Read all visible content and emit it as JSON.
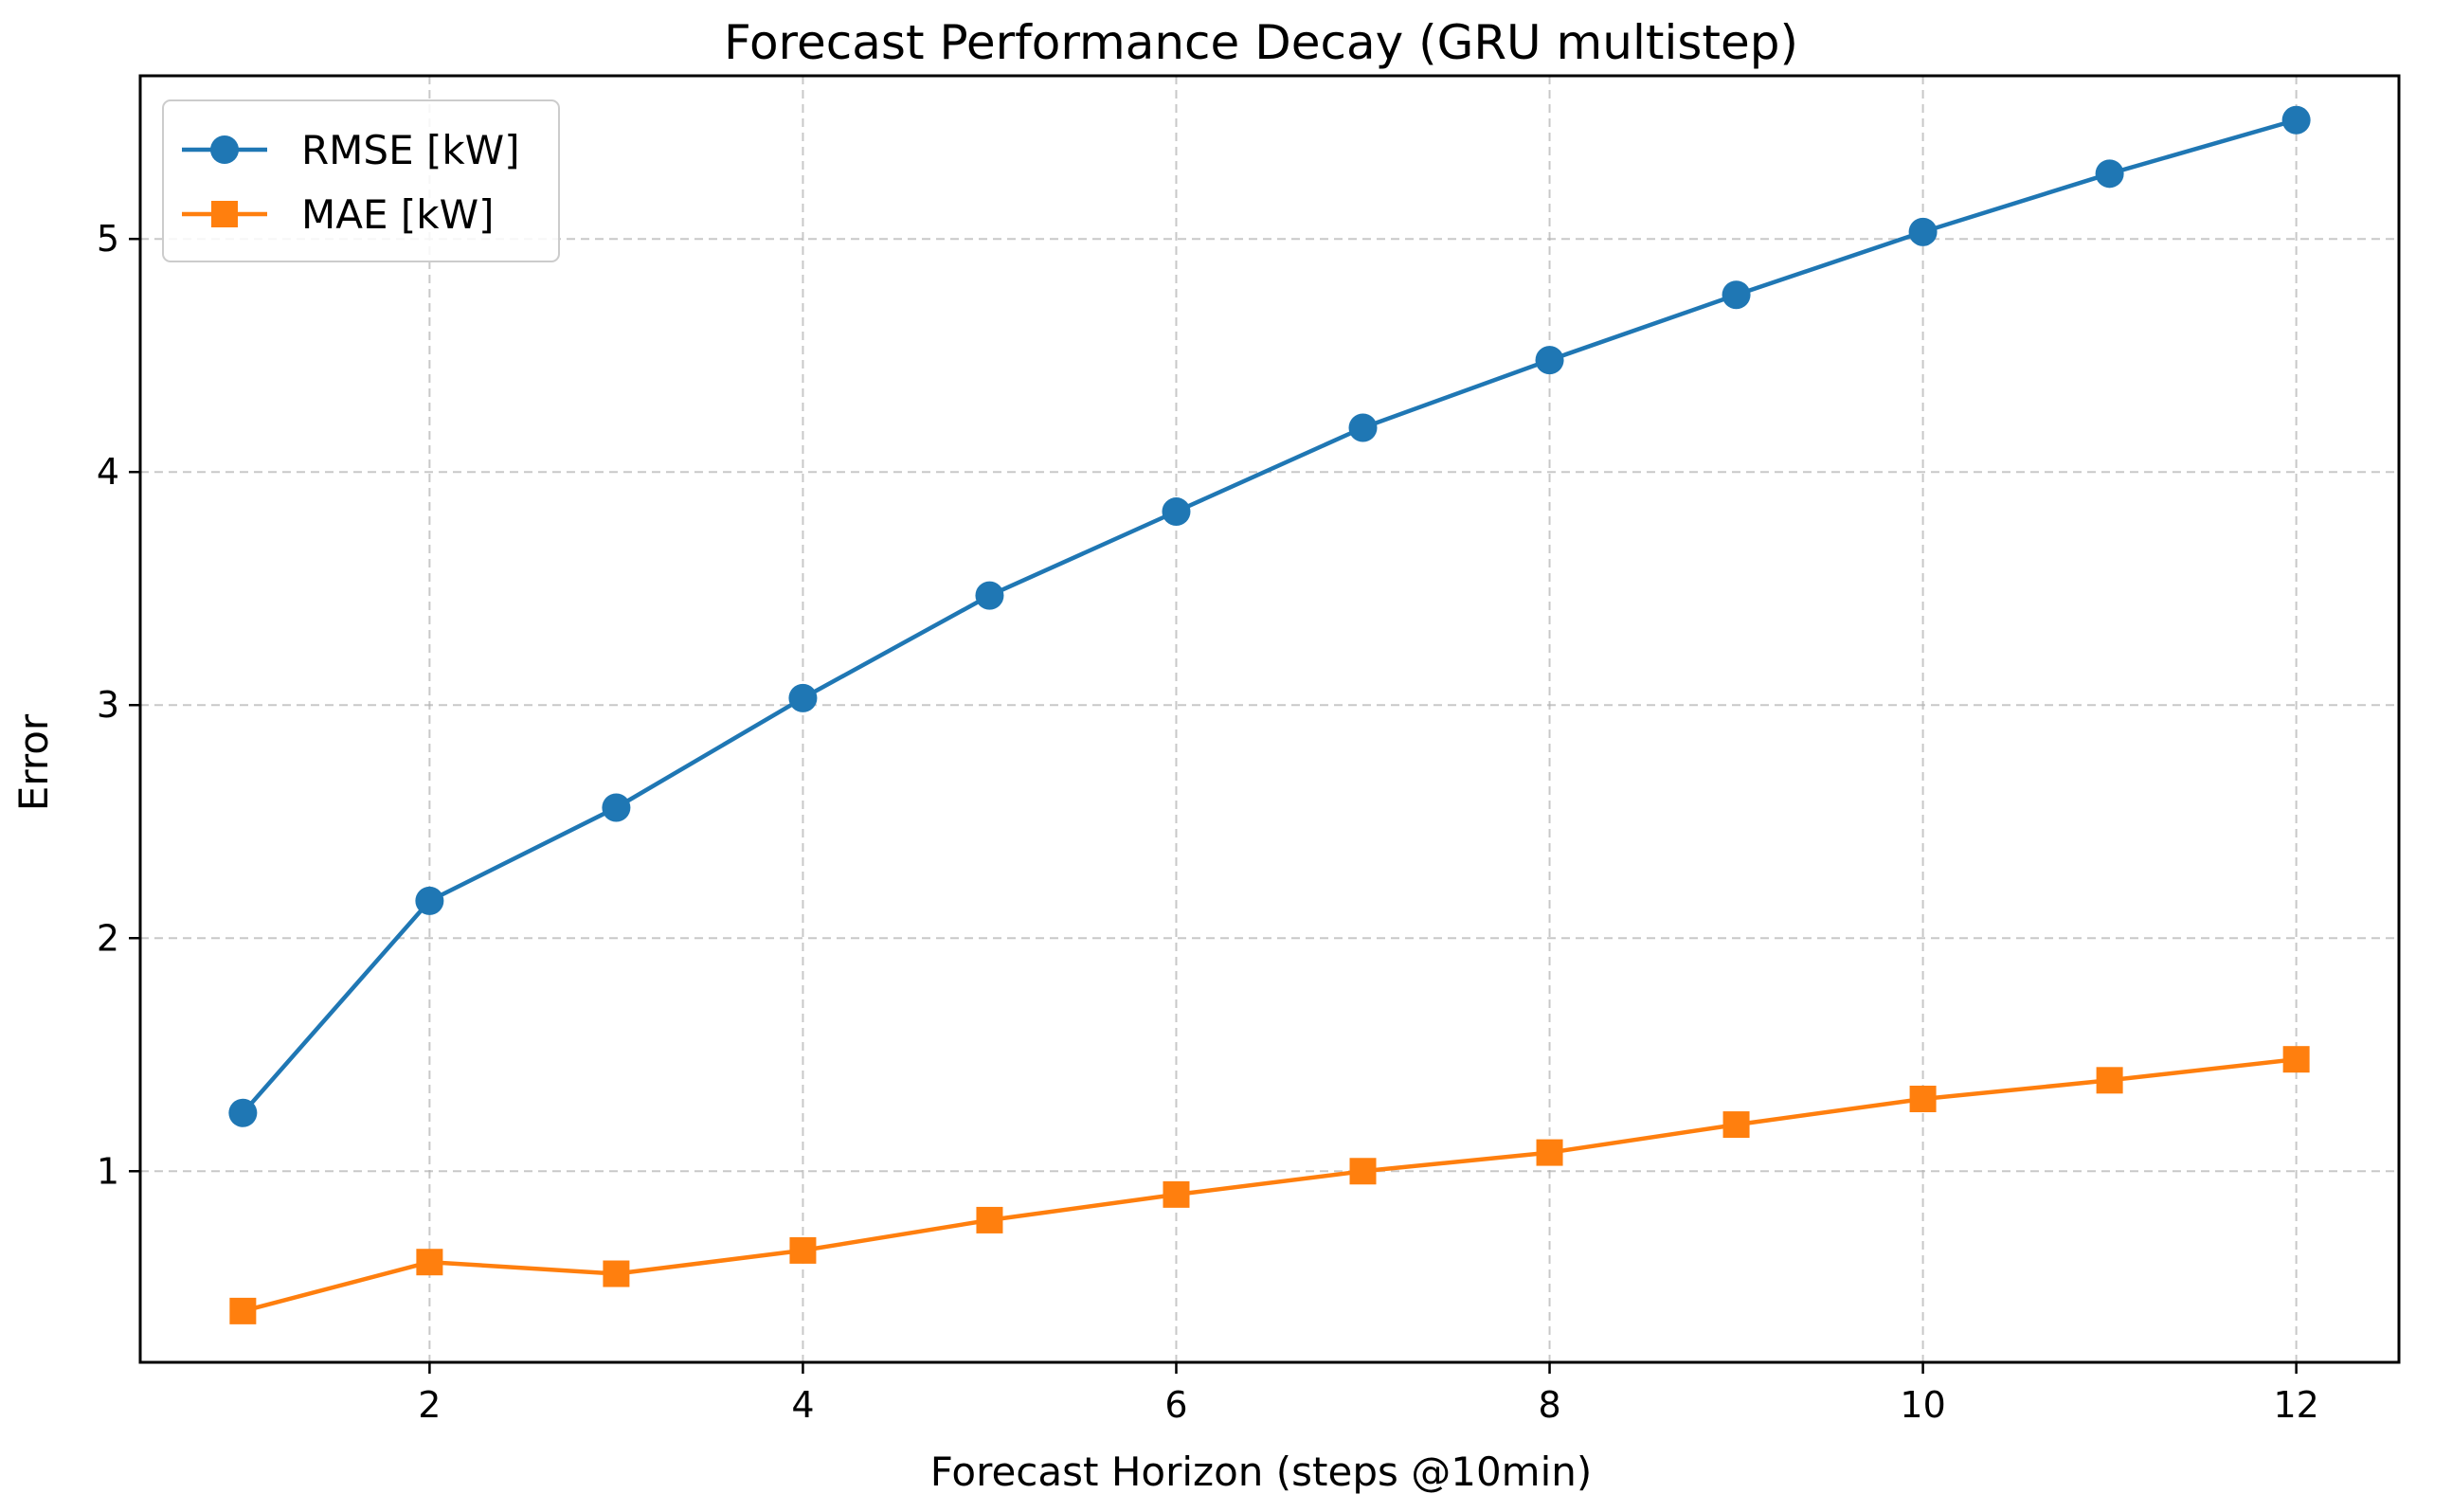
{
  "chart_data": {
    "type": "line",
    "title": "Forecast Performance Decay (GRU multistep)",
    "xlabel": "Forecast Horizon (steps @10min)",
    "ylabel": "Error",
    "x": [
      1,
      2,
      3,
      4,
      5,
      6,
      7,
      8,
      9,
      10,
      11,
      12
    ],
    "xlim": [
      0.45,
      12.55
    ],
    "ylim": [
      0.18,
      5.7
    ],
    "xticks": [
      2,
      4,
      6,
      8,
      10,
      12
    ],
    "yticks": [
      1,
      2,
      3,
      4,
      5
    ],
    "grid": true,
    "legend_position": "top-left",
    "series": [
      {
        "name": "RMSE [kW]",
        "color": "#1f77b4",
        "marker": "circle",
        "values": [
          1.25,
          2.16,
          2.56,
          3.03,
          3.47,
          3.83,
          4.19,
          4.48,
          4.76,
          5.03,
          5.28,
          5.51
        ]
      },
      {
        "name": "MAE [kW]",
        "color": "#ff7f0e",
        "marker": "square",
        "values": [
          0.4,
          0.61,
          0.56,
          0.66,
          0.79,
          0.9,
          1.0,
          1.08,
          1.2,
          1.31,
          1.39,
          1.48
        ]
      }
    ]
  }
}
